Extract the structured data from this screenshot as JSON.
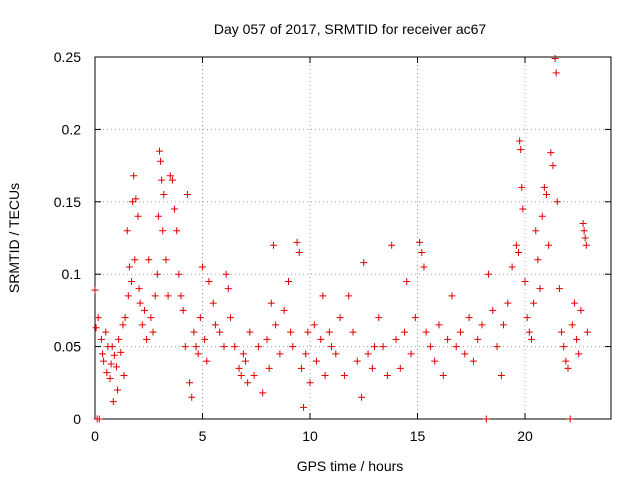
{
  "chart_data": {
    "type": "scatter",
    "title": "Day 057 of 2017, SRMTID for receiver ac67",
    "xlabel": "GPS time / hours",
    "ylabel": "SRMTID / TECUs",
    "xlim": [
      0,
      24
    ],
    "ylim": [
      0,
      0.25
    ],
    "grid": true,
    "marker": "+",
    "color": "#e00000",
    "xticks": [
      0,
      5,
      10,
      15,
      20
    ],
    "xtick_labels": [
      "0",
      "5",
      "10",
      "15",
      "20"
    ],
    "yticks": [
      0,
      0.05,
      0.1,
      0.15,
      0.2,
      0.25
    ],
    "ytick_labels": [
      "0",
      "0.05",
      "0.1",
      "0.15",
      "0.2",
      "0.25"
    ],
    "series": [
      {
        "name": "SRMTID",
        "points": [
          [
            0.0,
            0.089
          ],
          [
            0.05,
            0.063
          ],
          [
            0.1,
            0.0
          ],
          [
            0.15,
            0.07
          ],
          [
            0.2,
            0.0
          ],
          [
            0.3,
            0.055
          ],
          [
            0.35,
            0.045
          ],
          [
            0.4,
            0.04
          ],
          [
            0.5,
            0.06
          ],
          [
            0.55,
            0.032
          ],
          [
            0.6,
            0.05
          ],
          [
            0.7,
            0.028
          ],
          [
            0.75,
            0.038
          ],
          [
            0.8,
            0.05
          ],
          [
            0.85,
            0.012
          ],
          [
            0.9,
            0.044
          ],
          [
            1.0,
            0.036
          ],
          [
            1.05,
            0.02
          ],
          [
            1.1,
            0.055
          ],
          [
            1.2,
            0.046
          ],
          [
            1.3,
            0.065
          ],
          [
            1.35,
            0.03
          ],
          [
            1.4,
            0.07
          ],
          [
            1.5,
            0.13
          ],
          [
            1.55,
            0.085
          ],
          [
            1.6,
            0.105
          ],
          [
            1.7,
            0.095
          ],
          [
            1.75,
            0.15
          ],
          [
            1.8,
            0.168
          ],
          [
            1.85,
            0.11
          ],
          [
            1.9,
            0.152
          ],
          [
            2.0,
            0.14
          ],
          [
            2.05,
            0.09
          ],
          [
            2.1,
            0.08
          ],
          [
            2.2,
            0.065
          ],
          [
            2.3,
            0.075
          ],
          [
            2.4,
            0.055
          ],
          [
            2.5,
            0.11
          ],
          [
            2.6,
            0.07
          ],
          [
            2.7,
            0.06
          ],
          [
            2.8,
            0.085
          ],
          [
            2.9,
            0.1
          ],
          [
            2.95,
            0.14
          ],
          [
            3.0,
            0.185
          ],
          [
            3.05,
            0.178
          ],
          [
            3.1,
            0.165
          ],
          [
            3.15,
            0.13
          ],
          [
            3.2,
            0.155
          ],
          [
            3.3,
            0.11
          ],
          [
            3.4,
            0.085
          ],
          [
            3.5,
            0.168
          ],
          [
            3.6,
            0.165
          ],
          [
            3.7,
            0.145
          ],
          [
            3.8,
            0.13
          ],
          [
            3.9,
            0.1
          ],
          [
            4.0,
            0.085
          ],
          [
            4.1,
            0.075
          ],
          [
            4.2,
            0.05
          ],
          [
            4.3,
            0.155
          ],
          [
            4.4,
            0.025
          ],
          [
            4.5,
            0.015
          ],
          [
            4.6,
            0.06
          ],
          [
            4.7,
            0.05
          ],
          [
            4.8,
            0.045
          ],
          [
            4.9,
            0.07
          ],
          [
            5.0,
            0.105
          ],
          [
            5.1,
            0.055
          ],
          [
            5.2,
            0.04
          ],
          [
            5.3,
            0.095
          ],
          [
            5.5,
            0.08
          ],
          [
            5.6,
            0.065
          ],
          [
            5.8,
            0.06
          ],
          [
            6.0,
            0.05
          ],
          [
            6.1,
            0.1
          ],
          [
            6.2,
            0.09
          ],
          [
            6.3,
            0.07
          ],
          [
            6.5,
            0.05
          ],
          [
            6.7,
            0.035
          ],
          [
            6.8,
            0.03
          ],
          [
            6.9,
            0.045
          ],
          [
            7.0,
            0.04
          ],
          [
            7.1,
            0.025
          ],
          [
            7.2,
            0.06
          ],
          [
            7.4,
            0.03
          ],
          [
            7.6,
            0.05
          ],
          [
            7.8,
            0.018
          ],
          [
            8.0,
            0.055
          ],
          [
            8.1,
            0.035
          ],
          [
            8.2,
            0.08
          ],
          [
            8.3,
            0.12
          ],
          [
            8.4,
            0.065
          ],
          [
            8.6,
            0.045
          ],
          [
            8.8,
            0.075
          ],
          [
            9.0,
            0.095
          ],
          [
            9.1,
            0.06
          ],
          [
            9.2,
            0.05
          ],
          [
            9.4,
            0.122
          ],
          [
            9.5,
            0.115
          ],
          [
            9.6,
            0.035
          ],
          [
            9.7,
            0.008
          ],
          [
            9.8,
            0.045
          ],
          [
            9.9,
            0.06
          ],
          [
            10.0,
            0.025
          ],
          [
            10.2,
            0.065
          ],
          [
            10.3,
            0.04
          ],
          [
            10.5,
            0.055
          ],
          [
            10.6,
            0.085
          ],
          [
            10.7,
            0.03
          ],
          [
            10.9,
            0.06
          ],
          [
            11.0,
            0.05
          ],
          [
            11.2,
            0.045
          ],
          [
            11.4,
            0.07
          ],
          [
            11.6,
            0.03
          ],
          [
            11.8,
            0.085
          ],
          [
            12.0,
            0.06
          ],
          [
            12.2,
            0.04
          ],
          [
            12.4,
            0.015
          ],
          [
            12.5,
            0.108
          ],
          [
            12.7,
            0.045
          ],
          [
            12.9,
            0.035
          ],
          [
            13.0,
            0.05
          ],
          [
            13.2,
            0.07
          ],
          [
            13.4,
            0.05
          ],
          [
            13.6,
            0.03
          ],
          [
            13.8,
            0.12
          ],
          [
            14.0,
            0.055
          ],
          [
            14.2,
            0.035
          ],
          [
            14.4,
            0.06
          ],
          [
            14.5,
            0.095
          ],
          [
            14.7,
            0.045
          ],
          [
            14.9,
            0.07
          ],
          [
            15.1,
            0.122
          ],
          [
            15.2,
            0.115
          ],
          [
            15.3,
            0.105
          ],
          [
            15.4,
            0.06
          ],
          [
            15.6,
            0.05
          ],
          [
            15.8,
            0.04
          ],
          [
            16.0,
            0.065
          ],
          [
            16.2,
            0.03
          ],
          [
            16.4,
            0.055
          ],
          [
            16.6,
            0.085
          ],
          [
            16.8,
            0.05
          ],
          [
            17.0,
            0.06
          ],
          [
            17.2,
            0.045
          ],
          [
            17.4,
            0.07
          ],
          [
            17.6,
            0.04
          ],
          [
            17.8,
            0.055
          ],
          [
            18.0,
            0.065
          ],
          [
            18.2,
            0.0
          ],
          [
            18.3,
            0.1
          ],
          [
            18.5,
            0.075
          ],
          [
            18.7,
            0.05
          ],
          [
            18.9,
            0.03
          ],
          [
            19.0,
            0.065
          ],
          [
            19.2,
            0.08
          ],
          [
            19.4,
            0.105
          ],
          [
            19.6,
            0.12
          ],
          [
            19.7,
            0.115
          ],
          [
            19.75,
            0.192
          ],
          [
            19.8,
            0.186
          ],
          [
            19.85,
            0.16
          ],
          [
            19.9,
            0.145
          ],
          [
            20.0,
            0.095
          ],
          [
            20.1,
            0.07
          ],
          [
            20.2,
            0.06
          ],
          [
            20.3,
            0.055
          ],
          [
            20.4,
            0.08
          ],
          [
            20.5,
            0.13
          ],
          [
            20.6,
            0.11
          ],
          [
            20.7,
            0.09
          ],
          [
            20.8,
            0.14
          ],
          [
            20.9,
            0.16
          ],
          [
            21.0,
            0.155
          ],
          [
            21.1,
            0.12
          ],
          [
            21.2,
            0.184
          ],
          [
            21.3,
            0.175
          ],
          [
            21.4,
            0.249
          ],
          [
            21.45,
            0.239
          ],
          [
            21.5,
            0.15
          ],
          [
            21.6,
            0.09
          ],
          [
            21.7,
            0.06
          ],
          [
            21.8,
            0.05
          ],
          [
            21.9,
            0.04
          ],
          [
            22.0,
            0.035
          ],
          [
            22.1,
            0.0
          ],
          [
            22.2,
            0.065
          ],
          [
            22.3,
            0.08
          ],
          [
            22.4,
            0.055
          ],
          [
            22.5,
            0.045
          ],
          [
            22.6,
            0.075
          ],
          [
            22.7,
            0.135
          ],
          [
            22.75,
            0.13
          ],
          [
            22.8,
            0.125
          ],
          [
            22.85,
            0.12
          ],
          [
            22.9,
            0.06
          ]
        ]
      }
    ]
  }
}
